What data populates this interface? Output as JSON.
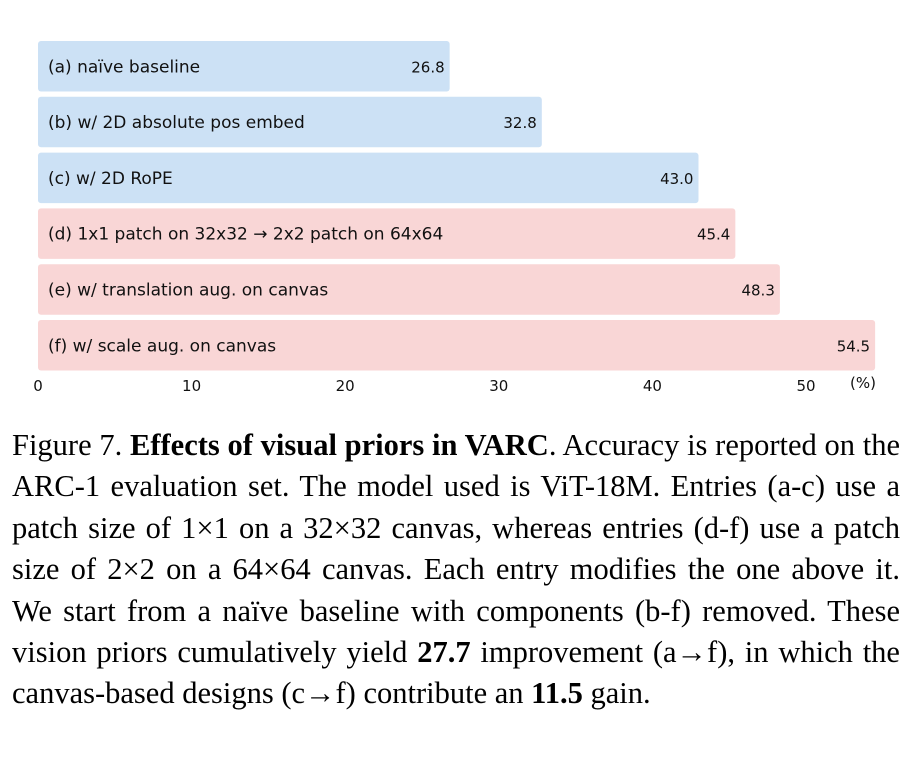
{
  "chart_data": {
    "type": "bar",
    "orientation": "horizontal",
    "categories": [
      "(a) naïve baseline",
      "(b) w/ 2D absolute pos embed",
      "(c) w/ 2D RoPE",
      "(d) 1x1 patch on 32x32  → 2x2 patch on 64x64",
      "(e) w/ translation aug. on canvas",
      "(f) w/ scale aug. on canvas"
    ],
    "values": [
      26.8,
      32.8,
      43.0,
      45.4,
      48.3,
      54.5
    ],
    "value_labels": [
      "26.8",
      "32.8",
      "43.0",
      "45.4",
      "48.3",
      "54.5"
    ],
    "bar_colors": [
      "#cce1f5",
      "#cce1f5",
      "#cce1f5",
      "#f9d6d6",
      "#f9d6d6",
      "#f9d6d6"
    ],
    "xticks": [
      0,
      10,
      20,
      30,
      40,
      50
    ],
    "xtick_labels": [
      "0",
      "10",
      "20",
      "30",
      "40",
      "50"
    ],
    "xunit": "(%)",
    "xlim": [
      0,
      56
    ],
    "grid": false,
    "title": "",
    "xlabel": "",
    "ylabel": ""
  },
  "caption": {
    "label": "Figure 7.",
    "title": "Effects of visual priors in VARC",
    "s1": ". Accuracy is reported on the ARC-1 evaluation set. The model used is ViT-18M. Entries (a-c) use a patch size of 1×1 on a 32×32 canvas, whereas entries (d-f) use a patch size of 2×2 on a 64×64 canvas. Each entry modifies the one above it. We start from a naïve baseline with components (b-f) removed. These vision priors cumulatively yield ",
    "b1": "27.7",
    "s2": " improvement (a→f), in which the canvas-based designs (c→f) contribute an ",
    "b2": "11.5",
    "s3": " gain."
  }
}
